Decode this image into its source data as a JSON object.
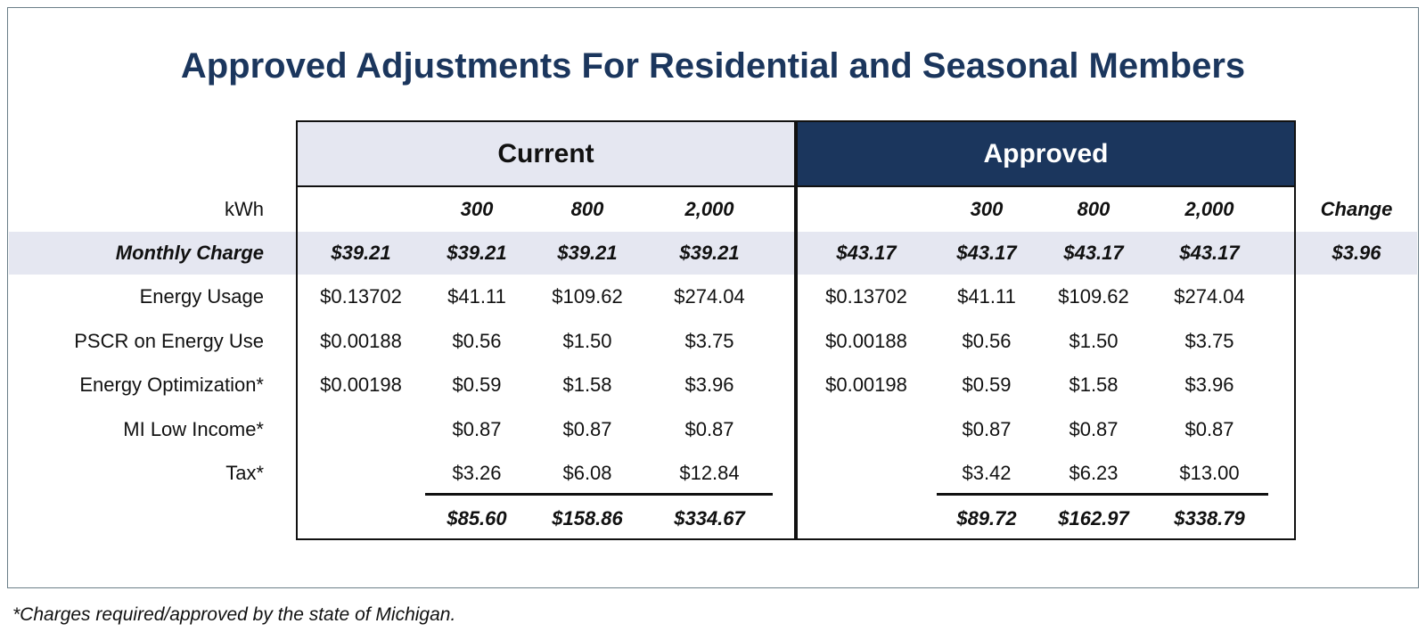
{
  "title": "Approved Adjustments For Residential and Seasonal Members",
  "groups": {
    "current": "Current",
    "approved": "Approved"
  },
  "header_row": {
    "label": "kWh",
    "current": [
      "300",
      "800",
      "2,000"
    ],
    "approved": [
      "300",
      "800",
      "2,000"
    ],
    "change": "Change"
  },
  "rows": [
    {
      "label": "Monthly Charge",
      "current_rate": "$39.21",
      "current": [
        "$39.21",
        "$39.21",
        "$39.21"
      ],
      "approved_rate": "$43.17",
      "approved": [
        "$43.17",
        "$43.17",
        "$43.17"
      ],
      "change": "$3.96"
    },
    {
      "label": "Energy Usage",
      "current_rate": "$0.13702",
      "current": [
        "$41.11",
        "$109.62",
        "$274.04"
      ],
      "approved_rate": "$0.13702",
      "approved": [
        "$41.11",
        "$109.62",
        "$274.04"
      ]
    },
    {
      "label": "PSCR on Energy Use",
      "current_rate": "$0.00188",
      "current": [
        "$0.56",
        "$1.50",
        "$3.75"
      ],
      "approved_rate": "$0.00188",
      "approved": [
        "$0.56",
        "$1.50",
        "$3.75"
      ]
    },
    {
      "label": "Energy Optimization*",
      "current_rate": "$0.00198",
      "current": [
        "$0.59",
        "$1.58",
        "$3.96"
      ],
      "approved_rate": "$0.00198",
      "approved": [
        "$0.59",
        "$1.58",
        "$3.96"
      ]
    },
    {
      "label": "MI Low Income*",
      "current_rate": "",
      "current": [
        "$0.87",
        "$0.87",
        "$0.87"
      ],
      "approved_rate": "",
      "approved": [
        "$0.87",
        "$0.87",
        "$0.87"
      ]
    },
    {
      "label": "Tax*",
      "current_rate": "",
      "current": [
        "$3.26",
        "$6.08",
        "$12.84"
      ],
      "approved_rate": "",
      "approved": [
        "$3.42",
        "$6.23",
        "$13.00"
      ]
    }
  ],
  "totals": {
    "current": [
      "$85.60",
      "$158.86",
      "$334.67"
    ],
    "approved": [
      "$89.72",
      "$162.97",
      "$338.79"
    ]
  },
  "footnote": "*Charges required/approved by the state of Michigan.",
  "colors": {
    "navy": "#1b365d",
    "band": "#e5e7f1"
  }
}
